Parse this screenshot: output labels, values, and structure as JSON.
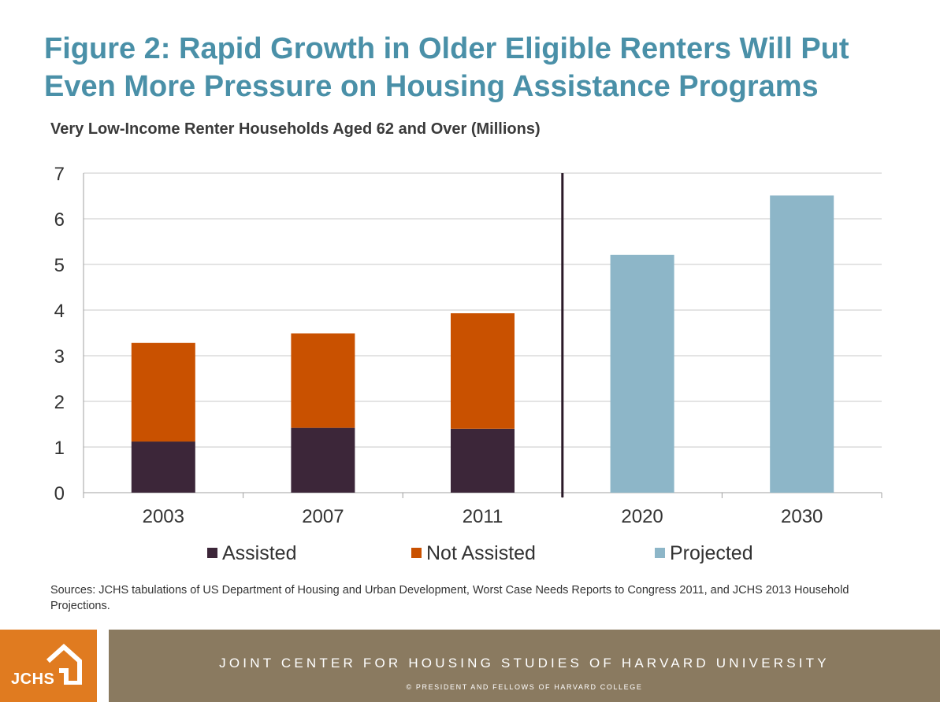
{
  "title": {
    "line1": "Figure 2: Rapid Growth in Older Eligible Renters Will Put",
    "line2": "Even More Pressure on Housing Assistance Programs"
  },
  "subtitle": "Very Low-Income Renter Households Aged 62 and Over (Millions)",
  "sources": "Sources: JCHS tabulations of US Department of Housing and Urban Development, Worst Case Needs Reports to Congress 2011, and JCHS 2013 Household Projections.",
  "footer": {
    "logo_text": "JCHS",
    "org_name": "JOINT CENTER FOR HOUSING STUDIES OF HARVARD UNIVERSITY",
    "copyright": "© PRESIDENT AND FELLOWS OF HARVARD COLLEGE"
  },
  "colors": {
    "assisted": "#3c2639",
    "not_assisted": "#c95100",
    "projected": "#8db6c8",
    "title": "#4a90a8",
    "footer_orange": "#e07b20",
    "footer_brown": "#8a7a60"
  },
  "chart_data": {
    "type": "bar",
    "stacked": true,
    "title": "Very Low-Income Renter Households Aged 62 and Over (Millions)",
    "categories": [
      "2003",
      "2007",
      "2011",
      "2020",
      "2030"
    ],
    "series": [
      {
        "name": "Assisted",
        "values": [
          1.12,
          1.42,
          1.4,
          0,
          0
        ],
        "color": "#3c2639"
      },
      {
        "name": "Not Assisted",
        "values": [
          2.16,
          2.07,
          2.53,
          0,
          0
        ],
        "color": "#c95100"
      },
      {
        "name": "Projected",
        "values": [
          0,
          0,
          0,
          5.21,
          6.51
        ],
        "color": "#8db6c8"
      }
    ],
    "y_ticks": [
      "0",
      "1",
      "2",
      "3",
      "4",
      "5",
      "6",
      "7"
    ],
    "ylim": [
      0,
      7
    ],
    "grid": true,
    "divider_between": [
      "2011",
      "2020"
    ],
    "legend": [
      "Assisted",
      "Not Assisted",
      "Projected"
    ],
    "legend_position": "bottom",
    "xlabel": "",
    "ylabel": ""
  }
}
